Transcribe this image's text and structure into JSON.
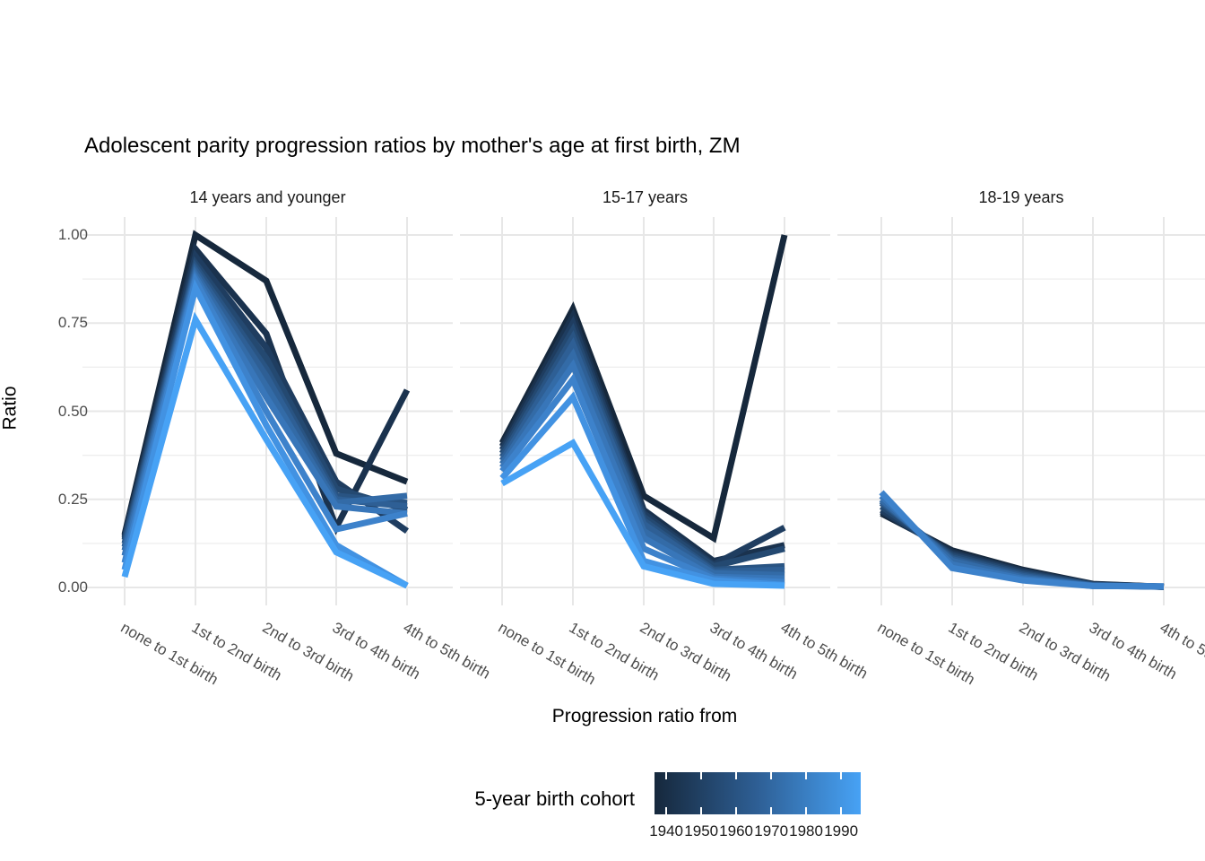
{
  "title": "Adolescent parity progression ratios by mother's age at first birth,  ZM",
  "y_axis": {
    "label": "Ratio",
    "ticks": [
      "1.00",
      "0.75",
      "0.50",
      "0.25",
      "0.00"
    ],
    "tick_values": [
      1.0,
      0.75,
      0.5,
      0.25,
      0.0
    ]
  },
  "x_axis": {
    "label": "Progression ratio from",
    "categories": [
      "none to 1st birth",
      "1st to 2nd birth",
      "2nd to 3rd birth",
      "3rd to 4th birth",
      "4th to 5th birth"
    ]
  },
  "legend": {
    "title": "5-year birth cohort",
    "ticks": [
      "1940",
      "1950",
      "1960",
      "1970",
      "1980",
      "1990"
    ],
    "gradient": [
      "#16283c",
      "#2e5f95",
      "#47a2f5"
    ]
  },
  "cohort_colors": {
    "1940": "#16283c",
    "1945": "#1a324e",
    "1950": "#1f3d60",
    "1955": "#244971",
    "1960": "#295483",
    "1965": "#2e5f95",
    "1970": "#336ba7",
    "1975": "#3876b9",
    "1980": "#3d82cb",
    "1985": "#4292e2",
    "1990": "#47a2f5"
  },
  "chart_data": {
    "type": "line",
    "title": "Adolescent parity progression ratios by mother's age at first birth,  ZM",
    "xlabel": "Progression ratio from",
    "ylabel": "Ratio",
    "ylim": [
      0,
      1
    ],
    "grid": true,
    "legend_position": "bottom",
    "color_scale": {
      "name": "5-year birth cohort",
      "domain": [
        1940,
        1990
      ]
    },
    "categories": [
      "none to 1st birth",
      "1st to 2nd birth",
      "2nd to 3rd birth",
      "3rd to 4th birth",
      "4th to 5th birth"
    ],
    "facets": [
      {
        "label": "14 years and younger",
        "series": [
          {
            "name": "1940",
            "values": [
              0.15,
              1.0,
              0.87,
              0.38,
              0.3
            ]
          },
          {
            "name": "1945",
            "values": [
              0.145,
              0.96,
              0.72,
              0.17,
              0.56
            ]
          },
          {
            "name": "1950",
            "values": [
              0.14,
              0.94,
              0.68,
              0.3,
              0.16
            ]
          },
          {
            "name": "1955",
            "values": [
              0.135,
              0.92,
              0.65,
              0.28,
              0.22
            ]
          },
          {
            "name": "1960",
            "values": [
              0.125,
              0.91,
              0.62,
              0.26,
              0.24
            ]
          },
          {
            "name": "1965",
            "values": [
              0.115,
              0.9,
              0.6,
              0.25,
              0.23
            ]
          },
          {
            "name": "1970",
            "values": [
              0.105,
              0.89,
              0.57,
              0.24,
              0.26
            ]
          },
          {
            "name": "1975",
            "values": [
              0.09,
              0.88,
              0.54,
              0.23,
              0.21
            ]
          },
          {
            "name": "1980",
            "values": [
              0.07,
              0.87,
              0.5,
              0.165,
              0.21
            ]
          },
          {
            "name": "1985",
            "values": [
              0.05,
              0.85,
              0.46,
              0.12,
              0.005
            ]
          },
          {
            "name": "1990",
            "values": [
              0.03,
              0.76,
              0.42,
              0.1,
              0.005
            ]
          }
        ]
      },
      {
        "label": "15-17 years",
        "series": [
          {
            "name": "1940",
            "values": [
              0.41,
              0.79,
              0.26,
              0.14,
              1.0
            ]
          },
          {
            "name": "1945",
            "values": [
              0.4,
              0.77,
              0.22,
              0.075,
              0.12
            ]
          },
          {
            "name": "1950",
            "values": [
              0.39,
              0.75,
              0.21,
              0.065,
              0.17
            ]
          },
          {
            "name": "1955",
            "values": [
              0.38,
              0.73,
              0.2,
              0.06,
              0.11
            ]
          },
          {
            "name": "1960",
            "values": [
              0.37,
              0.71,
              0.19,
              0.05,
              0.06
            ]
          },
          {
            "name": "1965",
            "values": [
              0.36,
              0.69,
              0.18,
              0.045,
              0.05
            ]
          },
          {
            "name": "1970",
            "values": [
              0.35,
              0.66,
              0.16,
              0.04,
              0.035
            ]
          },
          {
            "name": "1975",
            "values": [
              0.34,
              0.63,
              0.14,
              0.03,
              0.025
            ]
          },
          {
            "name": "1980",
            "values": [
              0.33,
              0.59,
              0.11,
              0.025,
              0.015
            ]
          },
          {
            "name": "1985",
            "values": [
              0.31,
              0.54,
              0.075,
              0.02,
              0.007
            ]
          },
          {
            "name": "1990",
            "values": [
              0.295,
              0.41,
              0.06,
              0.01,
              0.005
            ]
          }
        ]
      },
      {
        "label": "18-19 years",
        "series": [
          {
            "name": "1940",
            "values": [
              0.21,
              0.105,
              0.05,
              0.01,
              0.002
            ]
          },
          {
            "name": "1945",
            "values": [
              0.215,
              0.1,
              0.047,
              0.009,
              0.002
            ]
          },
          {
            "name": "1950",
            "values": [
              0.22,
              0.095,
              0.044,
              0.008,
              0.002
            ]
          },
          {
            "name": "1955",
            "values": [
              0.23,
              0.09,
              0.04,
              0.007,
              0.002
            ]
          },
          {
            "name": "1960",
            "values": [
              0.24,
              0.085,
              0.036,
              0.006,
              0.002
            ]
          },
          {
            "name": "1965",
            "values": [
              0.245,
              0.08,
              0.032,
              0.005,
              0.002
            ]
          },
          {
            "name": "1970",
            "values": [
              0.25,
              0.075,
              0.028,
              0.005,
              0.003
            ]
          },
          {
            "name": "1975",
            "values": [
              0.26,
              0.065,
              0.024,
              0.004,
              0.003
            ]
          },
          {
            "name": "1980",
            "values": [
              0.27,
              0.055,
              0.02,
              0.004,
              0.003
            ]
          }
        ]
      }
    ]
  }
}
